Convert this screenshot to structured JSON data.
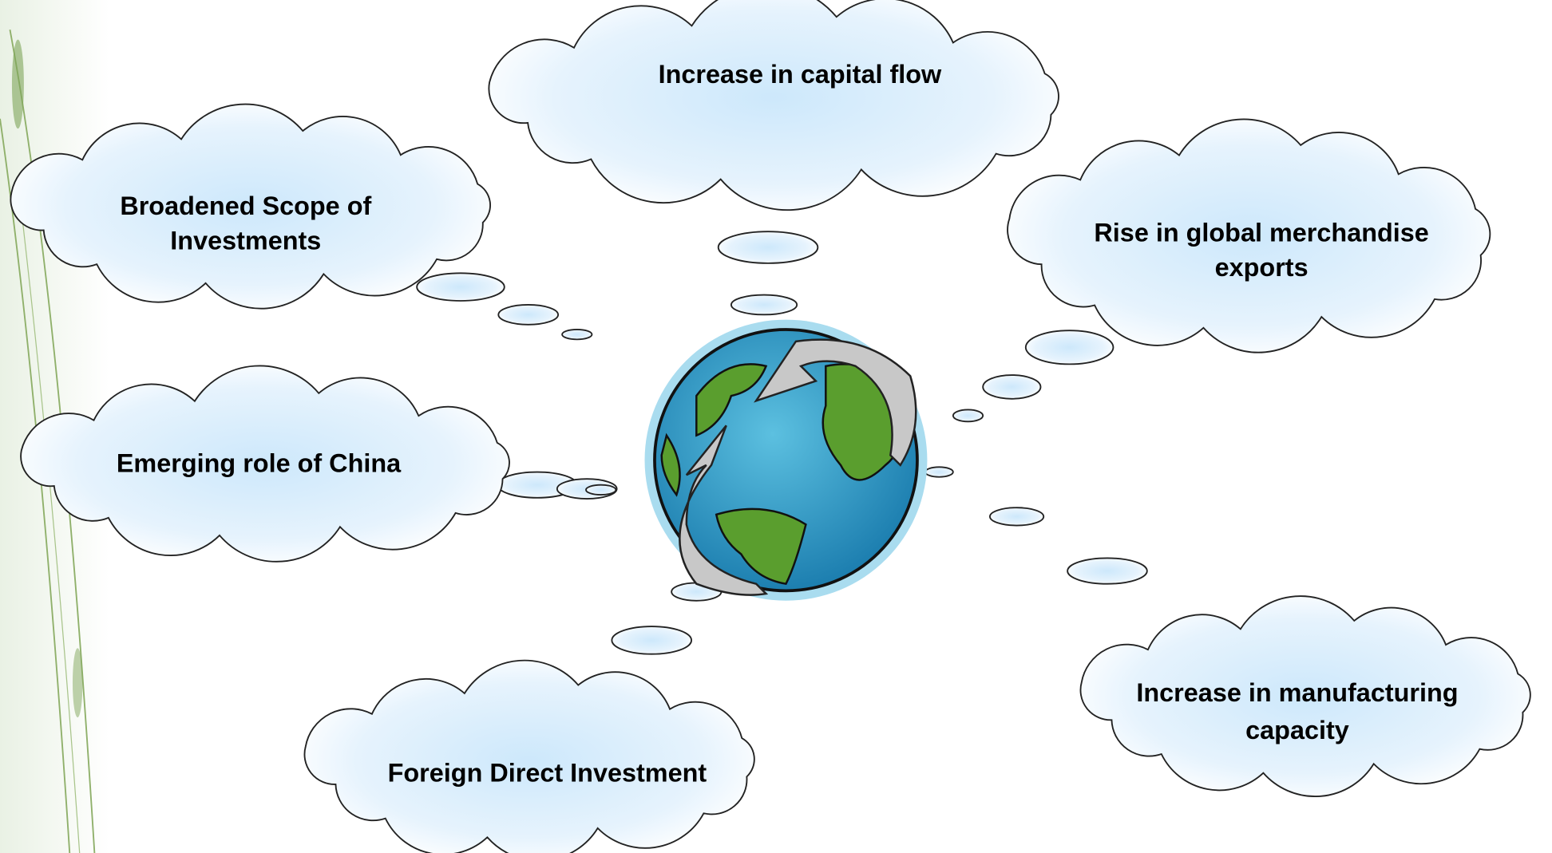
{
  "clouds": [
    {
      "lines": [
        "Increase in capital flow"
      ]
    },
    {
      "lines": [
        "Broadened Scope of",
        "Investments"
      ]
    },
    {
      "lines": [
        "Rise in global merchandise",
        "exports"
      ]
    },
    {
      "lines": [
        "Emerging role of China"
      ]
    },
    {
      "lines": [
        "Foreign Direct Investment"
      ]
    },
    {
      "lines": [
        "Increase in manufacturing",
        "capacity"
      ]
    }
  ]
}
